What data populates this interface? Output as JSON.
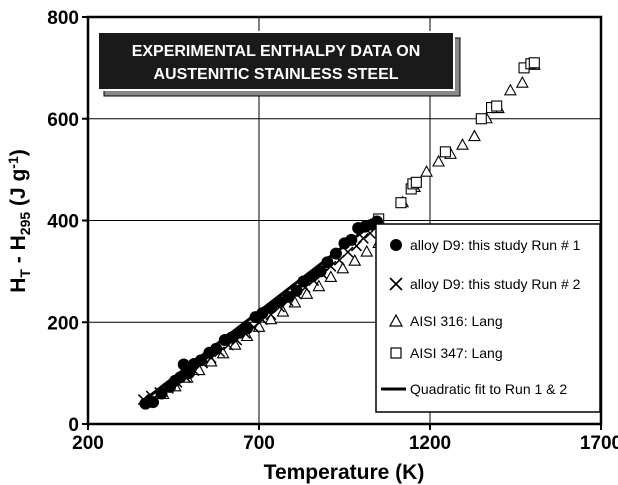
{
  "chart_data": {
    "type": "scatter",
    "title_lines": [
      "EXPERIMENTAL ENTHALPY DATA ON",
      "AUSTENITIC STAINLESS STEEL"
    ],
    "xlabel": "Temperature (K)",
    "ylabel": {
      "main": "H",
      "sub1": "T",
      "mid": " - H",
      "sub2": "295",
      "unit": " (J g",
      "sup": "-1",
      "end": ")"
    },
    "xlim": [
      200,
      1700
    ],
    "ylim": [
      0,
      800
    ],
    "xticks": [
      200,
      700,
      1200,
      1700
    ],
    "yticks": [
      0,
      200,
      400,
      600,
      800
    ],
    "grid": true,
    "legend_position": "lower-right",
    "series": [
      {
        "name": "alloy D9: this study Run # 1",
        "marker": "filled-circle",
        "x": [
          368,
          390,
          415,
          440,
          455,
          470,
          480,
          495,
          510,
          530,
          555,
          575,
          600,
          620,
          645,
          665,
          690,
          710,
          735,
          760,
          785,
          810,
          830,
          855,
          880,
          900,
          925,
          950,
          970,
          990,
          1010,
          1030,
          1045
        ],
        "y": [
          40,
          43,
          60,
          73,
          85,
          92,
          117,
          100,
          118,
          125,
          140,
          148,
          165,
          170,
          180,
          188,
          210,
          218,
          228,
          240,
          250,
          262,
          280,
          290,
          300,
          318,
          335,
          355,
          362,
          385,
          388,
          392,
          398
        ]
      },
      {
        "name": "alloy D9: this study Run # 2",
        "marker": "x",
        "x": [
          362,
          385,
          410,
          435,
          460,
          485,
          510,
          535,
          560,
          585,
          610,
          635,
          660,
          685,
          710,
          735,
          760,
          785,
          810,
          835,
          860,
          885,
          910,
          935,
          960,
          985,
          1005,
          1025
        ],
        "y": [
          48,
          55,
          62,
          70,
          82,
          92,
          105,
          120,
          130,
          142,
          155,
          165,
          178,
          190,
          205,
          215,
          230,
          242,
          255,
          268,
          282,
          295,
          310,
          322,
          338,
          350,
          365,
          375
        ]
      },
      {
        "name": "AISI 316: Lang",
        "marker": "open-triangle",
        "x": [
          420,
          455,
          490,
          525,
          560,
          595,
          630,
          665,
          700,
          735,
          770,
          805,
          840,
          875,
          910,
          945,
          980,
          1015,
          1050,
          1085,
          1120,
          1155,
          1190,
          1225,
          1260,
          1295,
          1330,
          1365,
          1400,
          1435,
          1470,
          1505
        ],
        "y": [
          58,
          73,
          90,
          105,
          122,
          138,
          155,
          172,
          190,
          205,
          220,
          238,
          255,
          270,
          288,
          305,
          320,
          338,
          355,
          372,
          435,
          465,
          495,
          515,
          530,
          548,
          565,
          600,
          620,
          655,
          670,
          705
        ]
      },
      {
        "name": "AISI 347: Lang",
        "marker": "open-square",
        "x": [
          1050,
          1115,
          1145,
          1150,
          1160,
          1245,
          1350,
          1380,
          1395,
          1475,
          1495,
          1505
        ],
        "y": [
          403,
          435,
          462,
          472,
          475,
          535,
          600,
          622,
          625,
          700,
          708,
          710
        ]
      },
      {
        "name": "Quadratic fit to Run 1 & 2",
        "marker": "line",
        "x": [
          355,
          1045
        ],
        "y": [
          42,
          400
        ]
      }
    ]
  }
}
